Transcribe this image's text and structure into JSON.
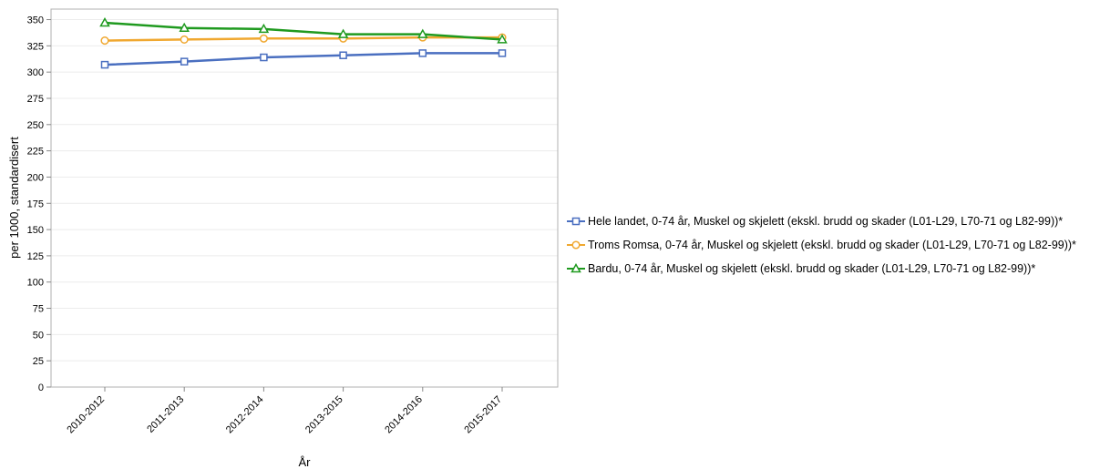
{
  "chart_data": {
    "type": "line",
    "title": "",
    "xlabel": "År",
    "ylabel": "per 1000, standardisert",
    "categories": [
      "2010-2012",
      "2011-2013",
      "2012-2014",
      "2013-2015",
      "2014-2016",
      "2015-2017"
    ],
    "ylim": [
      0,
      350
    ],
    "yticks": [
      0,
      25,
      50,
      75,
      100,
      125,
      150,
      175,
      200,
      225,
      250,
      275,
      300,
      325,
      350
    ],
    "grid": true,
    "legend_position": "right",
    "series": [
      {
        "name": "Hele landet, 0-74 år, Muskel og skjelett (ekskl. brudd og skader (L01-L29, L70-71 og L82-99))*",
        "color": "#4a6fc0",
        "marker": "square",
        "values": [
          307,
          310,
          314,
          316,
          318,
          318
        ]
      },
      {
        "name": "Troms Romsa, 0-74 år, Muskel og skjelett (ekskl. brudd og skader (L01-L29, L70-71 og L82-99))*",
        "color": "#f0a830",
        "marker": "circle",
        "values": [
          330,
          331,
          332,
          332,
          333,
          333
        ]
      },
      {
        "name": "Bardu, 0-74 år, Muskel og skjelett (ekskl. brudd og skader (L01-L29, L70-71 og L82-99))*",
        "color": "#1f9a1f",
        "marker": "triangle",
        "values": [
          347,
          342,
          341,
          336,
          336,
          331
        ]
      }
    ]
  }
}
